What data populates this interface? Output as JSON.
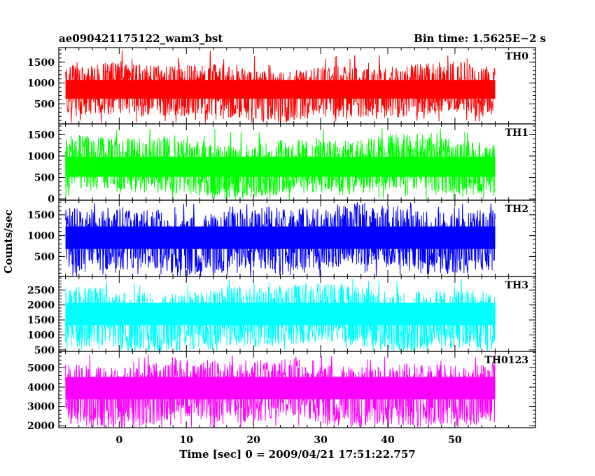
{
  "header": {
    "left_title": "ae090421175122_wam3_bst",
    "right_title": "Bin time: 1.5625E−2 s"
  },
  "chart_data": {
    "type": "line",
    "title": "ae090421175122_wam3_bst",
    "subtitle": "Bin time: 1.5625E−2 s",
    "xlabel": "Time [sec] 0 = 2009/04/21 17:51:22.757",
    "ylabel": "Counts/sec",
    "xlim": [
      -9,
      62
    ],
    "x_data_range": [
      -8,
      56
    ],
    "xticks": [
      0,
      10,
      20,
      30,
      40,
      50
    ],
    "xtick_labels": [
      "0",
      "10",
      "20",
      "30",
      "40",
      "50"
    ],
    "bin_time": 0.015625,
    "grid": false,
    "legend": "none",
    "panels": [
      {
        "name": "TH0",
        "color": "#ff0000",
        "ylim": [
          20,
          1850
        ],
        "yticks": [
          500,
          1000,
          1500
        ],
        "ytick_labels": [
          "500",
          "1000",
          "1500"
        ],
        "mean": 850,
        "typical_min": 150,
        "typical_max": 1400,
        "peak": 1800
      },
      {
        "name": "TH1",
        "color": "#00ff00",
        "ylim": [
          -30,
          1750
        ],
        "yticks": [
          0,
          500,
          1000,
          1500
        ],
        "ytick_labels": [
          "0",
          "500",
          "1000",
          "1500"
        ],
        "mean": 750,
        "typical_min": 100,
        "typical_max": 1400,
        "peak": 1650
      },
      {
        "name": "TH2",
        "color": "#0000ff",
        "ylim": [
          20,
          1850
        ],
        "yticks": [
          500,
          1000,
          1500
        ],
        "ytick_labels": [
          "500",
          "1000",
          "1500"
        ],
        "mean": 950,
        "typical_min": 150,
        "typical_max": 1650,
        "peak": 1800
      },
      {
        "name": "TH3",
        "color": "#00ffff",
        "ylim": [
          450,
          2950
        ],
        "yticks": [
          500,
          1000,
          1500,
          2000,
          2500
        ],
        "ytick_labels": [
          "500",
          "1000",
          "1500",
          "2000",
          "2500"
        ],
        "mean": 1700,
        "typical_min": 550,
        "typical_max": 2600,
        "peak": 2900
      },
      {
        "name": "TH0123",
        "color": "#ff00ff",
        "ylim": [
          1900,
          5850
        ],
        "yticks": [
          2000,
          3000,
          4000,
          5000
        ],
        "ytick_labels": [
          "2000",
          "3000",
          "4000",
          "5000"
        ],
        "mean": 3950,
        "typical_min": 2100,
        "typical_max": 5300,
        "peak": 5700
      }
    ]
  }
}
